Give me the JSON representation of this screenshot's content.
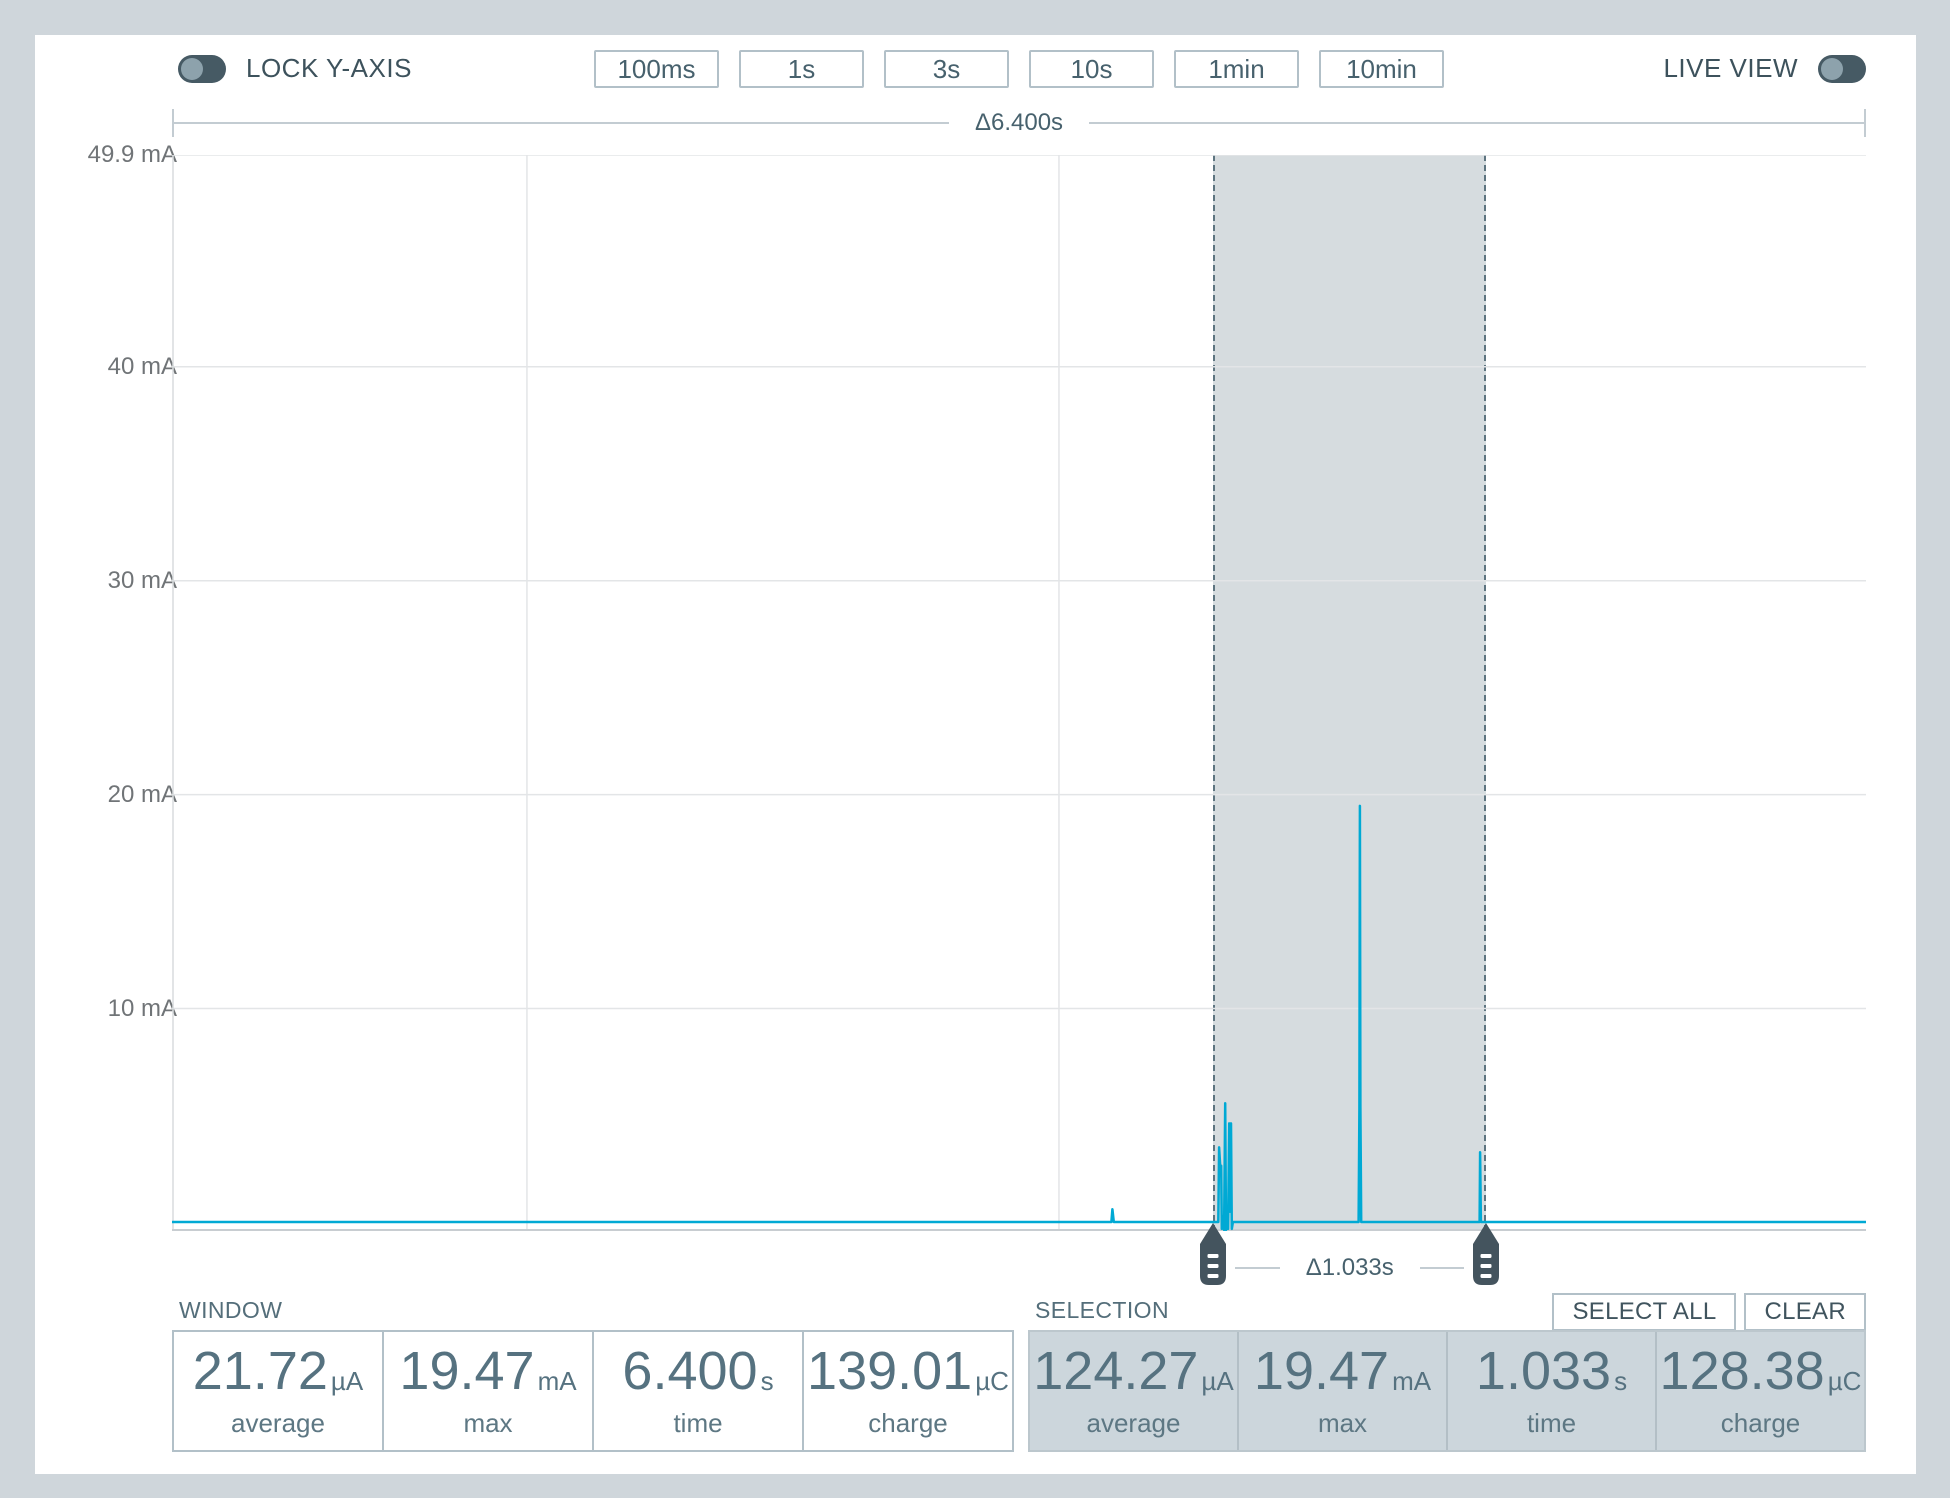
{
  "toolbar": {
    "lock_y_axis": {
      "label": "LOCK Y-AXIS",
      "state": "off"
    },
    "window_buttons": [
      "100ms",
      "1s",
      "3s",
      "10s",
      "1min",
      "10min"
    ],
    "live_view": {
      "label": "LIVE VIEW",
      "state": "off"
    }
  },
  "chart": {
    "window_delta_label": "Δ6.400s",
    "selection_delta_label": "Δ1.033s",
    "y_ticks": [
      {
        "label": "49.9 mA",
        "mA": 49.9
      },
      {
        "label": "40 mA",
        "mA": 40
      },
      {
        "label": "30 mA",
        "mA": 30
      },
      {
        "label": "20 mA",
        "mA": 20
      },
      {
        "label": "10 mA",
        "mA": 10
      }
    ]
  },
  "chart_data": {
    "type": "line",
    "title": "",
    "x_unit": "s",
    "y_unit": "mA",
    "x_range_s": [
      0,
      6.4
    ],
    "ylim_mA": [
      -0.4,
      49.9
    ],
    "grid": true,
    "legend": false,
    "vertical_gridlines_s": [
      1.341,
      3.351
    ],
    "selection_s": [
      3.933,
      4.966
    ],
    "series": [
      {
        "name": "current_mA",
        "points": [
          [
            0,
            0.02
          ],
          [
            3.549,
            0.02
          ],
          [
            3.553,
            0.62
          ],
          [
            3.558,
            0.02
          ],
          [
            3.953,
            0.02
          ],
          [
            3.956,
            3.51
          ],
          [
            3.96,
            2.65
          ],
          [
            3.964,
            2.65
          ],
          [
            3.966,
            -0.3
          ],
          [
            3.972,
            0.3
          ],
          [
            3.975,
            -0.35
          ],
          [
            3.979,
            5.57
          ],
          [
            3.982,
            -0.35
          ],
          [
            3.986,
            0.4
          ],
          [
            3.99,
            -0.3
          ],
          [
            3.994,
            4.63
          ],
          [
            3.997,
            0.5
          ],
          [
            4.001,
            4.63
          ],
          [
            4.004,
            -0.3
          ],
          [
            4.008,
            0.02
          ],
          [
            4.483,
            0.02
          ],
          [
            4.486,
            5.35
          ],
          [
            4.488,
            19.47
          ],
          [
            4.49,
            5.35
          ],
          [
            4.493,
            0.02
          ],
          [
            4.94,
            0.02
          ],
          [
            4.942,
            3.28
          ],
          [
            4.945,
            0.02
          ],
          [
            6.4,
            0.02
          ]
        ]
      }
    ]
  },
  "stats": {
    "window": {
      "title": "WINDOW",
      "cells": [
        {
          "value": "21.72",
          "unit": "µA",
          "label": "average"
        },
        {
          "value": "19.47",
          "unit": "mA",
          "label": "max"
        },
        {
          "value": "6.400",
          "unit": "s",
          "label": "time"
        },
        {
          "value": "139.01",
          "unit": "µC",
          "label": "charge"
        }
      ]
    },
    "selection": {
      "title": "SELECTION",
      "select_all_label": "SELECT ALL",
      "clear_label": "CLEAR",
      "cells": [
        {
          "value": "124.27",
          "unit": "µA",
          "label": "average"
        },
        {
          "value": "19.47",
          "unit": "mA",
          "label": "max"
        },
        {
          "value": "1.033",
          "unit": "s",
          "label": "time"
        },
        {
          "value": "128.38",
          "unit": "µC",
          "label": "charge"
        }
      ]
    }
  },
  "colors": {
    "background": "#CFD6DB",
    "card": "#FFFFFF",
    "accent_line": "#00A9D4",
    "selection_fill": "rgba(85,110,123,0.24)",
    "selection_border": "#5D7480",
    "selection_handle": "#44545E",
    "toggle_track": "#465A64",
    "toggle_knob": "#8DA2AC",
    "gridline": "#E3E5E7",
    "text_primary": "#47616D"
  }
}
